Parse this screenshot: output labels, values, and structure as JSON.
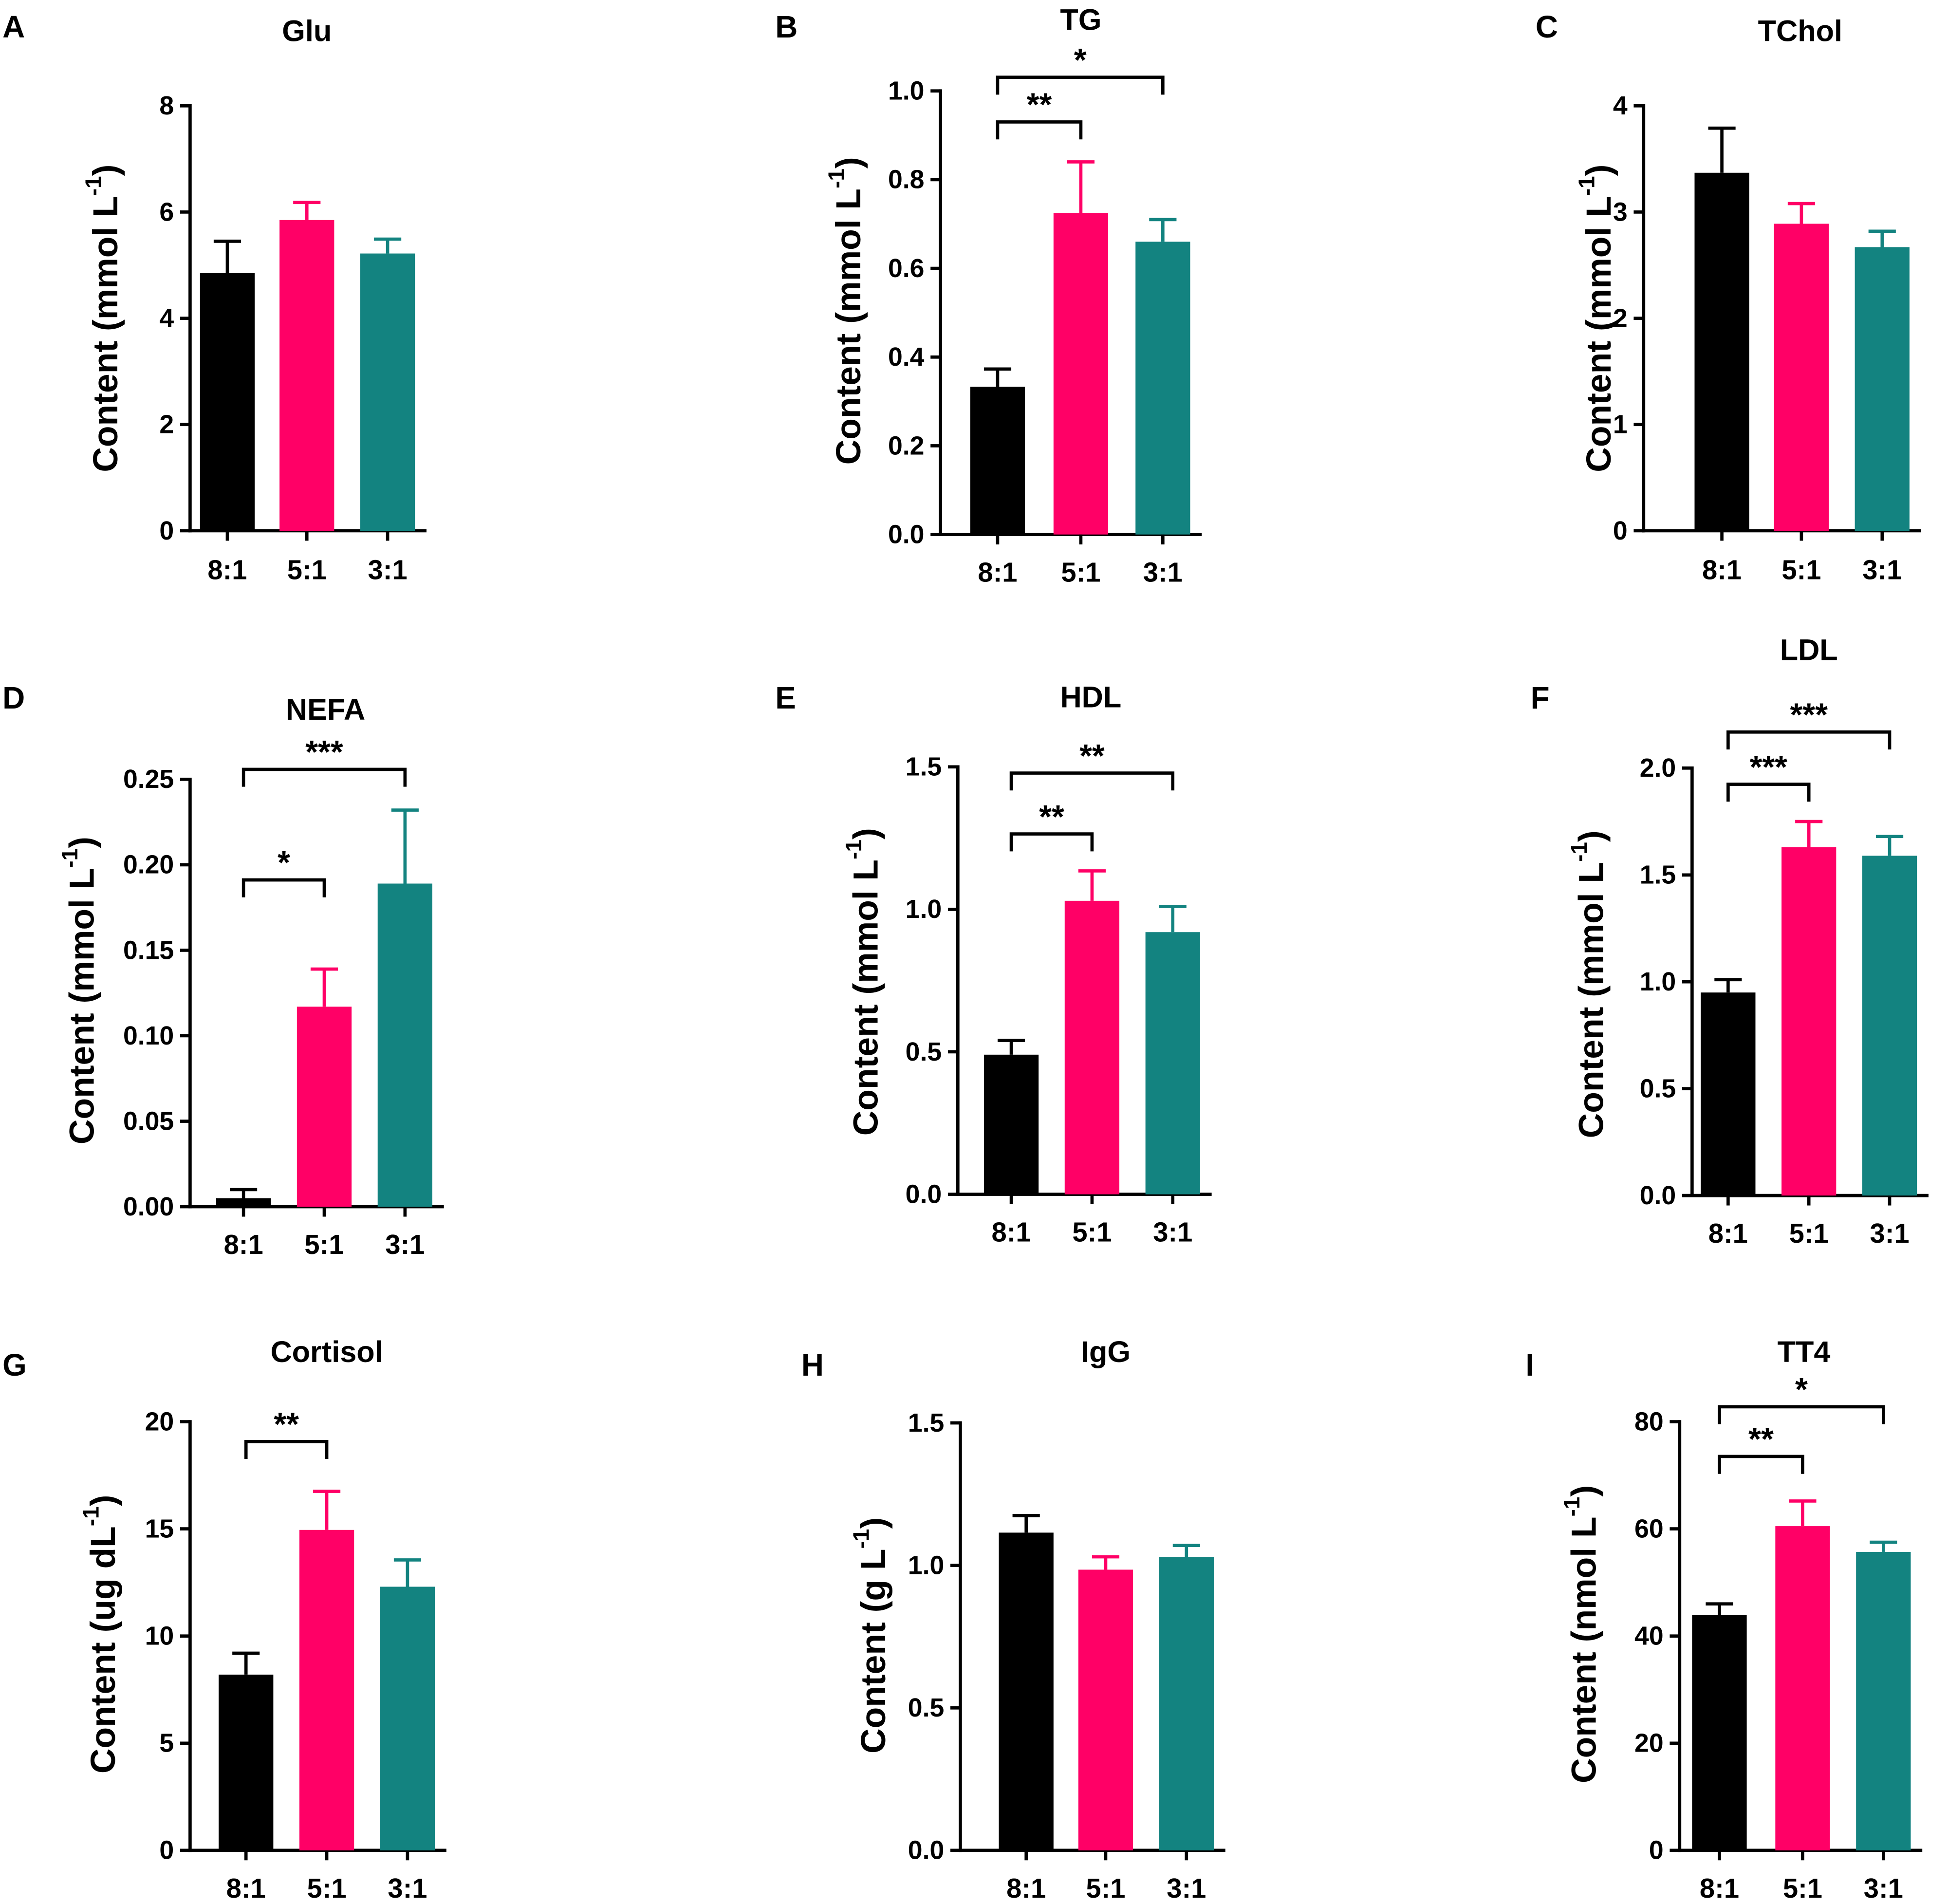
{
  "chart_data": [
    {
      "panel": "A",
      "type": "bar",
      "title": "Glu",
      "categories": [
        "8:1",
        "5:1",
        "3:1"
      ],
      "values": [
        4.85,
        5.85,
        5.22
      ],
      "errors": [
        0.6,
        0.33,
        0.27
      ],
      "colors": [
        "#000000",
        "#ff0066",
        "#138380"
      ],
      "ylim": [
        0,
        8
      ],
      "yticks": [
        "0",
        "2",
        "4",
        "6",
        "8"
      ],
      "ylabel": {
        "text": "Content (mmol L",
        "sup": "-1",
        "close": ")"
      },
      "xlabel": "",
      "significance": []
    },
    {
      "panel": "B",
      "type": "bar",
      "title": "TG",
      "categories": [
        "8:1",
        "5:1",
        "3:1"
      ],
      "values": [
        0.333,
        0.725,
        0.66
      ],
      "errors": [
        0.04,
        0.115,
        0.05
      ],
      "colors": [
        "#000000",
        "#ff0066",
        "#138380"
      ],
      "ylim": [
        0,
        1.0
      ],
      "yticks": [
        "0.0",
        "0.2",
        "0.4",
        "0.6",
        "0.8",
        "1.0"
      ],
      "ylabel": {
        "text": "Content (mmol L",
        "sup": "-1",
        "close": ")"
      },
      "xlabel": "",
      "significance": [
        {
          "pair": [
            "8:1",
            "5:1"
          ],
          "label": "**"
        },
        {
          "pair": [
            "8:1",
            "3:1"
          ],
          "label": "*"
        }
      ]
    },
    {
      "panel": "C",
      "type": "bar",
      "title": "TChol",
      "categories": [
        "8:1",
        "5:1",
        "3:1"
      ],
      "values": [
        3.37,
        2.89,
        2.67
      ],
      "errors": [
        0.42,
        0.19,
        0.15
      ],
      "colors": [
        "#000000",
        "#ff0066",
        "#138380"
      ],
      "ylim": [
        0,
        4
      ],
      "yticks": [
        "0",
        "1",
        "2",
        "3",
        "4"
      ],
      "ylabel": {
        "text": "Content (mmol L",
        "sup": "-1",
        "close": ")"
      },
      "xlabel": "",
      "significance": []
    },
    {
      "panel": "D",
      "type": "bar",
      "title": "NEFA",
      "categories": [
        "8:1",
        "5:1",
        "3:1"
      ],
      "values": [
        0.005,
        0.117,
        0.189
      ],
      "errors": [
        0.005,
        0.022,
        0.043
      ],
      "colors": [
        "#000000",
        "#ff0066",
        "#138380"
      ],
      "ylim": [
        0,
        0.25
      ],
      "yticks": [
        "0.00",
        "0.05",
        "0.10",
        "0.15",
        "0.20",
        "0.25"
      ],
      "ylabel": {
        "text": "Content (mmol L",
        "sup": "-1",
        "close": ")"
      },
      "xlabel": "",
      "significance": [
        {
          "pair": [
            "8:1",
            "5:1"
          ],
          "label": "*"
        },
        {
          "pair": [
            "8:1",
            "3:1"
          ],
          "label": "***"
        }
      ]
    },
    {
      "panel": "E",
      "type": "bar",
      "title": "HDL",
      "categories": [
        "8:1",
        "5:1",
        "3:1"
      ],
      "values": [
        0.49,
        1.03,
        0.92
      ],
      "errors": [
        0.05,
        0.105,
        0.09
      ],
      "colors": [
        "#000000",
        "#ff0066",
        "#138380"
      ],
      "ylim": [
        0,
        1.5
      ],
      "yticks": [
        "0.0",
        "0.5",
        "1.0",
        "1.5"
      ],
      "ylabel": {
        "text": "Content (mmol L",
        "sup": "-1",
        "close": ")"
      },
      "xlabel": "",
      "significance": [
        {
          "pair": [
            "8:1",
            "5:1"
          ],
          "label": "**"
        },
        {
          "pair": [
            "8:1",
            "3:1"
          ],
          "label": "**"
        }
      ]
    },
    {
      "panel": "F",
      "type": "bar",
      "title": "LDL",
      "categories": [
        "8:1",
        "5:1",
        "3:1"
      ],
      "values": [
        0.95,
        1.63,
        1.59
      ],
      "errors": [
        0.06,
        0.12,
        0.09
      ],
      "colors": [
        "#000000",
        "#ff0066",
        "#138380"
      ],
      "ylim": [
        0,
        2.0
      ],
      "yticks": [
        "0.0",
        "0.5",
        "1.0",
        "1.5",
        "2.0"
      ],
      "ylabel": {
        "text": "Content (mmol L",
        "sup": "-1",
        "close": ")"
      },
      "xlabel": "",
      "significance": [
        {
          "pair": [
            "8:1",
            "5:1"
          ],
          "label": "***"
        },
        {
          "pair": [
            "8:1",
            "3:1"
          ],
          "label": "***"
        }
      ]
    },
    {
      "panel": "G",
      "type": "bar",
      "title": "Cortisol",
      "categories": [
        "8:1",
        "5:1",
        "3:1"
      ],
      "values": [
        8.2,
        14.95,
        12.3
      ],
      "errors": [
        1.0,
        1.8,
        1.25
      ],
      "colors": [
        "#000000",
        "#ff0066",
        "#138380"
      ],
      "ylim": [
        0,
        20
      ],
      "yticks": [
        "0",
        "5",
        "10",
        "15",
        "20"
      ],
      "ylabel": {
        "text": "Content (ug dL",
        "sup": "-1",
        "close": ")"
      },
      "xlabel": "",
      "significance": [
        {
          "pair": [
            "8:1",
            "5:1"
          ],
          "label": "**"
        }
      ]
    },
    {
      "panel": "H",
      "type": "bar",
      "title": "IgG",
      "categories": [
        "8:1",
        "5:1",
        "3:1"
      ],
      "values": [
        1.115,
        0.985,
        1.03
      ],
      "errors": [
        0.06,
        0.045,
        0.04
      ],
      "colors": [
        "#000000",
        "#ff0066",
        "#138380"
      ],
      "ylim": [
        0,
        1.5
      ],
      "yticks": [
        "0.0",
        "0.5",
        "1.0",
        "1.5"
      ],
      "ylabel": {
        "text": "Content (g L",
        "sup": "-1",
        "close": ")"
      },
      "xlabel": "",
      "significance": []
    },
    {
      "panel": "I",
      "type": "bar",
      "title": "TT4",
      "categories": [
        "8:1",
        "5:1",
        "3:1"
      ],
      "values": [
        43.9,
        60.5,
        55.7
      ],
      "errors": [
        2.1,
        4.7,
        1.8
      ],
      "colors": [
        "#000000",
        "#ff0066",
        "#138380"
      ],
      "ylim": [
        0,
        80
      ],
      "yticks": [
        "0",
        "20",
        "40",
        "60",
        "80"
      ],
      "ylabel": {
        "text": "Content (nmol L",
        "sup": "-1",
        "close": ")"
      },
      "xlabel": "",
      "significance": [
        {
          "pair": [
            "8:1",
            "5:1"
          ],
          "label": "**"
        },
        {
          "pair": [
            "8:1",
            "3:1"
          ],
          "label": "*"
        }
      ]
    }
  ]
}
